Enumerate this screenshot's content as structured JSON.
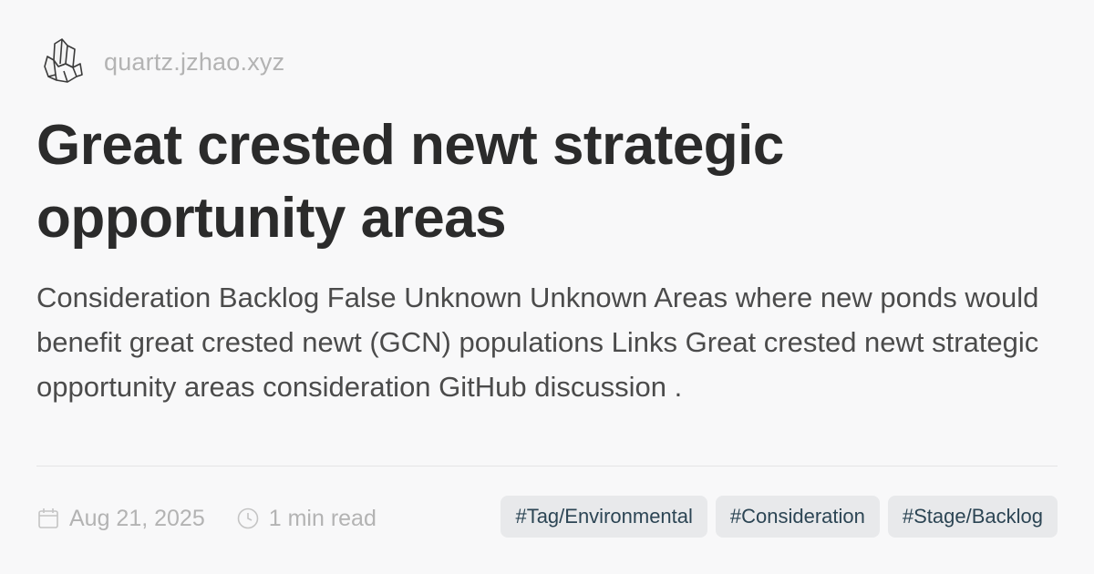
{
  "site": {
    "logo_icon": "crystal-logo-icon",
    "domain": "quartz.jzhao.xyz"
  },
  "page": {
    "title": "Great crested newt strategic opportunity areas",
    "description": "Consideration Backlog False Unknown Unknown Areas where new ponds would benefit great crested newt (GCN) populations Links Great crested newt strategic opportunity areas consideration GitHub discussion ."
  },
  "meta": {
    "date_icon": "calendar-icon",
    "date": "Aug 21, 2025",
    "reading_icon": "clock-icon",
    "reading_time": "1 min read"
  },
  "tags": [
    "#Tag/Environmental",
    "#Consideration",
    "#Stage/Backlog"
  ],
  "colors": {
    "background": "#f8f8f9",
    "title": "#2b2b2b",
    "muted": "#b3b3b3",
    "tag_bg": "#e8e9eb",
    "tag_text": "#2c4554"
  }
}
